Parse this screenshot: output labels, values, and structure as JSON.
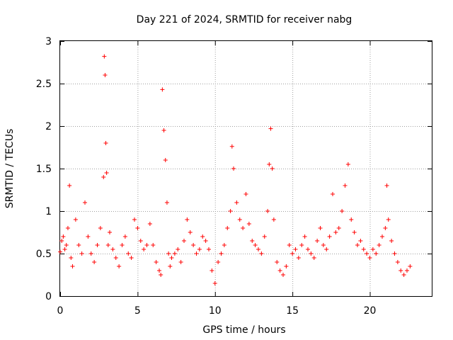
{
  "chart_data": {
    "type": "scatter",
    "title": "Day 221 of 2024, SRMTID for receiver nabg",
    "xlabel": "GPS time / hours",
    "ylabel": "SRMTID / TECUs",
    "xlim": [
      0,
      24
    ],
    "ylim": [
      0,
      3
    ],
    "xticks": [
      0,
      5,
      10,
      15,
      20
    ],
    "yticks": [
      0,
      0.5,
      1,
      1.5,
      2,
      2.5,
      3
    ],
    "xtick_labels": [
      "0",
      "5",
      "10",
      "15",
      "20"
    ],
    "ytick_labels": [
      "0",
      "0.5",
      "1",
      "1.5",
      "2",
      "2.5",
      "3"
    ],
    "grid": true,
    "marker": "plus",
    "series": [
      {
        "name": "SRMTID",
        "color": "#ff0000",
        "x": [
          0.0,
          0.1,
          0.2,
          0.3,
          0.4,
          0.5,
          0.6,
          0.7,
          0.8,
          1.0,
          1.2,
          1.4,
          1.6,
          1.8,
          2.0,
          2.2,
          2.4,
          2.6,
          2.8,
          2.85,
          2.9,
          2.95,
          3.0,
          3.1,
          3.2,
          3.4,
          3.6,
          3.8,
          4.0,
          4.2,
          4.4,
          4.6,
          4.8,
          5.0,
          5.2,
          5.4,
          5.6,
          5.8,
          6.0,
          6.2,
          6.4,
          6.5,
          6.6,
          6.7,
          6.8,
          6.9,
          7.0,
          7.1,
          7.2,
          7.4,
          7.6,
          7.8,
          8.0,
          8.2,
          8.4,
          8.6,
          8.8,
          9.0,
          9.2,
          9.4,
          9.6,
          9.8,
          10.0,
          10.2,
          10.4,
          10.6,
          10.8,
          11.0,
          11.1,
          11.2,
          11.4,
          11.6,
          11.8,
          12.0,
          12.2,
          12.4,
          12.6,
          12.8,
          13.0,
          13.2,
          13.4,
          13.5,
          13.6,
          13.7,
          13.8,
          14.0,
          14.2,
          14.4,
          14.6,
          14.8,
          15.0,
          15.2,
          15.4,
          15.6,
          15.8,
          16.0,
          16.2,
          16.4,
          16.6,
          16.8,
          17.0,
          17.2,
          17.4,
          17.6,
          17.8,
          18.0,
          18.2,
          18.4,
          18.6,
          18.8,
          19.0,
          19.2,
          19.4,
          19.6,
          19.8,
          20.0,
          20.2,
          20.4,
          20.6,
          20.8,
          21.0,
          21.1,
          21.2,
          21.4,
          21.6,
          21.8,
          22.0,
          22.2,
          22.4,
          22.6
        ],
        "y": [
          0.52,
          0.65,
          0.7,
          0.55,
          0.6,
          0.8,
          1.3,
          0.45,
          0.35,
          0.9,
          0.6,
          0.5,
          1.1,
          0.7,
          0.5,
          0.4,
          0.6,
          0.8,
          1.4,
          2.82,
          2.6,
          1.8,
          1.45,
          0.6,
          0.75,
          0.55,
          0.45,
          0.35,
          0.6,
          0.7,
          0.5,
          0.45,
          0.9,
          0.8,
          0.65,
          0.55,
          0.6,
          0.85,
          0.6,
          0.4,
          0.3,
          0.25,
          2.43,
          1.95,
          1.6,
          1.1,
          0.5,
          0.35,
          0.45,
          0.5,
          0.55,
          0.4,
          0.65,
          0.9,
          0.75,
          0.6,
          0.5,
          0.55,
          0.7,
          0.65,
          0.55,
          0.3,
          0.15,
          0.4,
          0.5,
          0.6,
          0.8,
          1.0,
          1.76,
          1.5,
          1.1,
          0.9,
          0.8,
          1.2,
          0.85,
          0.65,
          0.6,
          0.55,
          0.5,
          0.7,
          1.0,
          1.55,
          1.97,
          1.5,
          0.9,
          0.4,
          0.3,
          0.25,
          0.35,
          0.6,
          0.5,
          0.55,
          0.45,
          0.6,
          0.7,
          0.55,
          0.5,
          0.45,
          0.65,
          0.8,
          0.6,
          0.55,
          0.7,
          1.2,
          0.75,
          0.8,
          1.0,
          1.3,
          1.55,
          0.9,
          0.75,
          0.6,
          0.65,
          0.55,
          0.5,
          0.45,
          0.55,
          0.5,
          0.6,
          0.7,
          0.8,
          1.3,
          0.9,
          0.65,
          0.5,
          0.4,
          0.3,
          0.25,
          0.3,
          0.35
        ]
      }
    ]
  }
}
